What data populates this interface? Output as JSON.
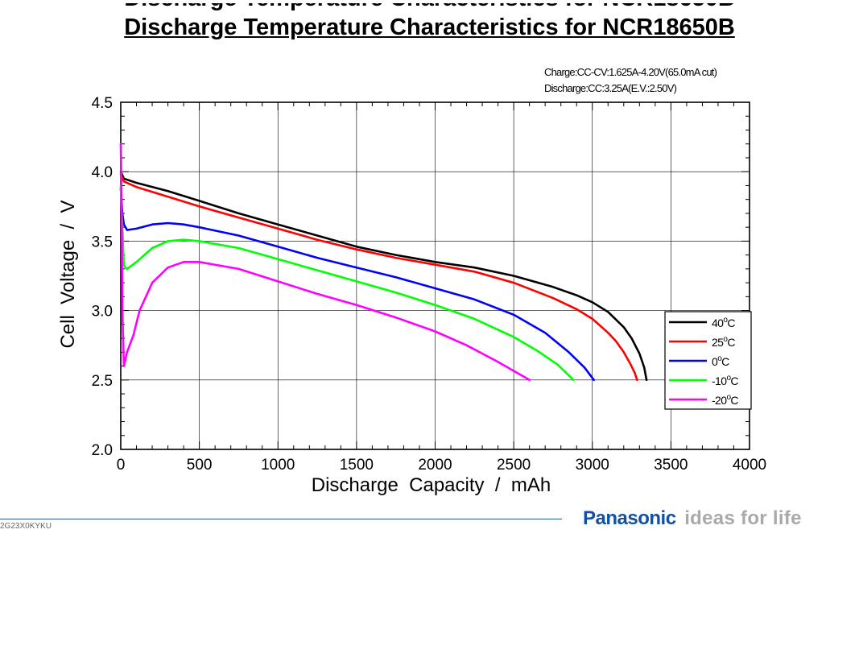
{
  "page": {
    "title": "Discharge Temperature Characteristics for NCR18650B",
    "conditions": {
      "charge": "Charge:CC-CV:1.625A-4.20V(65.0mA  cut)",
      "discharge": "Discharge:CC:3.25A(E.V.:2.50V)"
    },
    "doc_id": "2G23X0KYKU",
    "brand": {
      "name": "Panasonic",
      "slogan": "ideas for life"
    }
  },
  "colors": {
    "brand": "#1450a0",
    "slogan": "#a9a9a9",
    "rule": "#2c5aa8"
  },
  "chart_data": {
    "type": "line",
    "title": "Discharge Temperature Characteristics for NCR18650B",
    "xlabel": "Discharge  Capacity  /  mAh",
    "ylabel": "Cell  Voltage  /  V",
    "xlim": [
      0,
      4000
    ],
    "ylim": [
      2.0,
      4.5
    ],
    "xticks": [
      0,
      500,
      1000,
      1500,
      2000,
      2500,
      3000,
      3500,
      4000
    ],
    "yticks": [
      2.0,
      2.5,
      3.0,
      3.5,
      4.0,
      4.5
    ],
    "xtick_labels": [
      "0",
      "500",
      "1000",
      "1500",
      "2000",
      "2500",
      "3000",
      "3500",
      "4000"
    ],
    "ytick_labels": [
      "2.0",
      "2.5",
      "3.0",
      "3.5",
      "4.0",
      "4.5"
    ],
    "grid": true,
    "legend_position": "right",
    "series": [
      {
        "name": "40°C",
        "label_num": "40",
        "label_unit": "C",
        "color": "#000000",
        "x": [
          0,
          20,
          100,
          300,
          500,
          750,
          1000,
          1250,
          1500,
          1750,
          2000,
          2250,
          2500,
          2750,
          2900,
          3000,
          3100,
          3200,
          3250,
          3300,
          3330,
          3345
        ],
        "y": [
          4.0,
          3.95,
          3.92,
          3.86,
          3.79,
          3.7,
          3.62,
          3.54,
          3.46,
          3.4,
          3.35,
          3.31,
          3.25,
          3.17,
          3.11,
          3.06,
          2.99,
          2.88,
          2.8,
          2.69,
          2.59,
          2.5
        ]
      },
      {
        "name": "25°C",
        "label_num": "25",
        "label_unit": "C",
        "color": "#ff0000",
        "x": [
          0,
          20,
          100,
          300,
          500,
          750,
          1000,
          1250,
          1500,
          1750,
          2000,
          2250,
          2500,
          2750,
          2900,
          3000,
          3100,
          3150,
          3200,
          3240,
          3270,
          3285
        ],
        "y": [
          3.98,
          3.93,
          3.89,
          3.82,
          3.75,
          3.67,
          3.59,
          3.51,
          3.44,
          3.38,
          3.33,
          3.28,
          3.2,
          3.09,
          3.01,
          2.94,
          2.84,
          2.78,
          2.7,
          2.62,
          2.55,
          2.5
        ]
      },
      {
        "name": "0°C",
        "label_num": "0",
        "label_unit": "C",
        "color": "#0000ff",
        "x": [
          0,
          10,
          20,
          40,
          100,
          200,
          300,
          400,
          500,
          750,
          1000,
          1250,
          1500,
          1750,
          2000,
          2250,
          2500,
          2700,
          2850,
          2950,
          3010
        ],
        "y": [
          3.88,
          3.7,
          3.62,
          3.58,
          3.59,
          3.62,
          3.63,
          3.62,
          3.6,
          3.54,
          3.46,
          3.38,
          3.31,
          3.24,
          3.16,
          3.08,
          2.97,
          2.84,
          2.7,
          2.59,
          2.5
        ]
      },
      {
        "name": "-10°C",
        "label_num": "-10",
        "label_unit": "C",
        "color": "#00ff00",
        "x": [
          0,
          10,
          20,
          40,
          100,
          200,
          300,
          400,
          500,
          750,
          1000,
          1250,
          1500,
          1750,
          2000,
          2250,
          2500,
          2650,
          2780,
          2880
        ],
        "y": [
          3.9,
          3.6,
          3.32,
          3.3,
          3.35,
          3.45,
          3.5,
          3.51,
          3.5,
          3.45,
          3.37,
          3.29,
          3.21,
          3.13,
          3.04,
          2.94,
          2.81,
          2.71,
          2.61,
          2.5
        ]
      },
      {
        "name": "-20°C",
        "label_num": "-20",
        "label_unit": "C",
        "color": "#ff00ff",
        "x": [
          0,
          5,
          10,
          20,
          40,
          80,
          120,
          200,
          300,
          400,
          500,
          750,
          1000,
          1250,
          1500,
          1750,
          2000,
          2200,
          2400,
          2600
        ],
        "y": [
          4.2,
          3.8,
          3.0,
          2.6,
          2.7,
          2.82,
          3.0,
          3.2,
          3.31,
          3.35,
          3.35,
          3.3,
          3.21,
          3.12,
          3.04,
          2.95,
          2.85,
          2.75,
          2.63,
          2.5
        ]
      }
    ]
  }
}
